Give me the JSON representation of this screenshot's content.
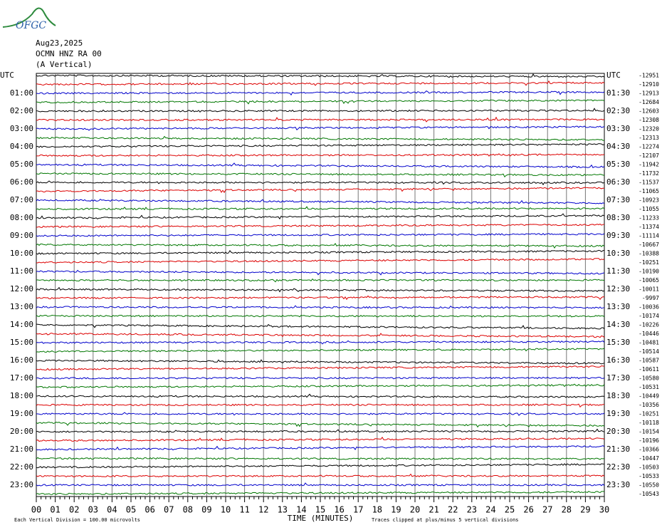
{
  "header": {
    "logo": "OFGC",
    "date": "Aug23,2025",
    "station": "OCMN HNZ RA 00",
    "component": "(A Vertical)"
  },
  "left_labels": [
    "UTC",
    "01:00",
    "02:00",
    "03:00",
    "04:00",
    "05:00",
    "06:00",
    "07:00",
    "08:00",
    "09:00",
    "10:00",
    "11:00",
    "12:00",
    "13:00",
    "14:00",
    "15:00",
    "16:00",
    "17:00",
    "18:00",
    "19:00",
    "20:00",
    "21:00",
    "22:00",
    "23:00"
  ],
  "right_labels": [
    "UTC",
    "01:30",
    "02:30",
    "03:30",
    "04:30",
    "05:30",
    "06:30",
    "07:30",
    "08:30",
    "09:30",
    "10:30",
    "11:30",
    "12:30",
    "13:30",
    "14:30",
    "15:30",
    "16:30",
    "17:30",
    "18:30",
    "19:30",
    "20:30",
    "21:30",
    "22:30",
    "23:30"
  ],
  "trace_values": [
    "-12951",
    "-12910",
    "-12913",
    "-12684",
    "-12603",
    "-12308",
    "-12320",
    "-12313",
    "-12274",
    "-12107",
    "-11942",
    "-11732",
    "-11537",
    "-11065",
    "-10923",
    "-11055",
    "-11233",
    "-11374",
    "-11114",
    "-10667",
    "-10388",
    "-10251",
    "-10190",
    "-10065",
    "-10011",
    "-9997",
    "-10036",
    "-10174",
    "-10226",
    "-10446",
    "-10481",
    "-10514",
    "-10587",
    "-10611",
    "-10580",
    "-10531",
    "-10449",
    "-10356",
    "-10251",
    "-10118",
    "-10154",
    "-10196",
    "-10366",
    "-10447",
    "-10503",
    "-10533",
    "-10550",
    "-10543"
  ],
  "x_ticks": [
    "00",
    "01",
    "02",
    "03",
    "04",
    "05",
    "06",
    "07",
    "08",
    "09",
    "10",
    "11",
    "12",
    "13",
    "14",
    "15",
    "16",
    "17",
    "18",
    "19",
    "20",
    "21",
    "22",
    "23",
    "24",
    "25",
    "26",
    "27",
    "28",
    "29",
    "30"
  ],
  "x_title": "TIME (MINUTES)",
  "footer": {
    "scale": "Each Vertical Division =  100.00 microvolts",
    "clip": "Traces clipped at plus/minus 5 vertical divisions"
  }
}
